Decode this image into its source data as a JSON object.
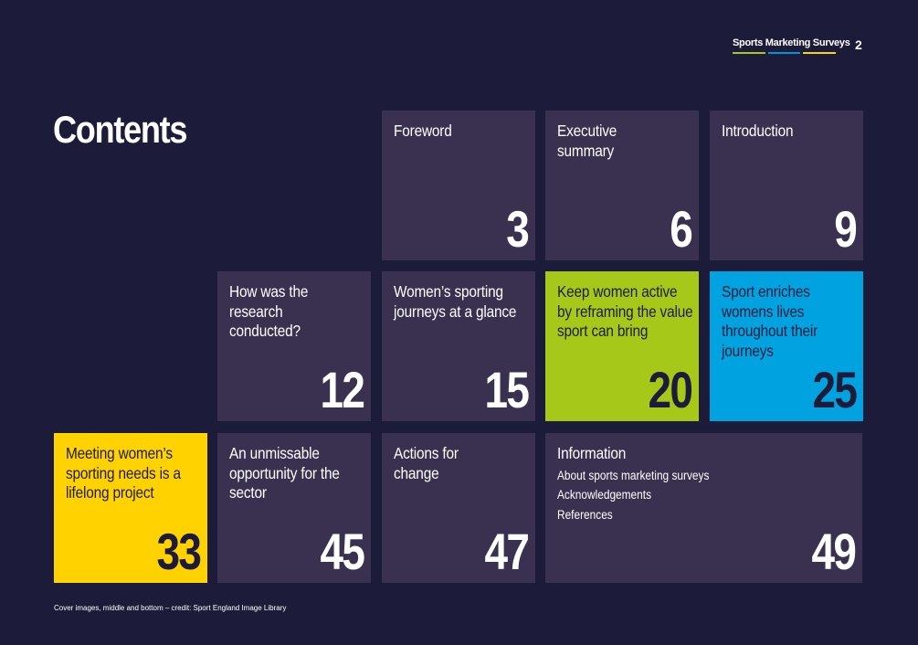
{
  "header": {
    "brand": "Sports Marketing Surveys",
    "page_number": "2",
    "brand_bar_colors": [
      "#a6c818",
      "#0096d6",
      "#ffd200"
    ]
  },
  "title": "Contents",
  "tiles": [
    {
      "label": "Foreword",
      "page": "3",
      "color": "#3a3050"
    },
    {
      "label": "Executive summary",
      "page": "6",
      "color": "#3a3050"
    },
    {
      "label": "Introduction",
      "page": "9",
      "color": "#3a3050"
    },
    {
      "label": "How was the research conducted?",
      "page": "12",
      "color": "#3a3050"
    },
    {
      "label": "Women’s sporting journeys at a glance",
      "page": "15",
      "color": "#3a3050"
    },
    {
      "label": "Keep women active by reframing the value sport can bring",
      "page": "20",
      "color": "#a6c818"
    },
    {
      "label": "Sport enriches womens lives throughout their journeys",
      "page": "25",
      "color": "#00a3e0"
    },
    {
      "label": "Meeting women’s sporting needs is a lifelong project",
      "page": "33",
      "color": "#ffd200"
    },
    {
      "label": "An unmissable opportunity for the sector",
      "page": "45",
      "color": "#3a3050"
    },
    {
      "label": "Actions for change",
      "page": "47",
      "color": "#3a3050"
    },
    {
      "label": "Information",
      "page": "49",
      "color": "#3a3050",
      "subitems": [
        "About sports marketing surveys",
        "Acknowledgements",
        "References"
      ]
    }
  ],
  "footer": {
    "credit": "Cover images, middle and bottom – credit: Sport England Image Library"
  }
}
